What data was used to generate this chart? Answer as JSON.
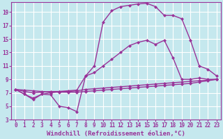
{
  "xlabel": "Windchill (Refroidissement éolien,°C)",
  "background_color": "#c5e8ee",
  "grid_color": "#ffffff",
  "line_color": "#993399",
  "xlim": [
    -0.5,
    23.5
  ],
  "ylim": [
    3,
    20.5
  ],
  "xticks": [
    0,
    1,
    2,
    3,
    4,
    5,
    6,
    7,
    8,
    9,
    10,
    11,
    12,
    13,
    14,
    15,
    16,
    17,
    18,
    19,
    20,
    21,
    22,
    23
  ],
  "yticks": [
    3,
    5,
    7,
    9,
    11,
    13,
    15,
    17,
    19
  ],
  "line1_x": [
    0,
    1,
    2,
    3,
    4,
    5,
    6,
    7,
    8,
    9,
    10,
    11,
    12,
    13,
    14,
    15,
    16,
    17,
    18,
    19,
    20,
    21,
    22,
    23
  ],
  "line1_y": [
    7.5,
    6.8,
    6.0,
    6.8,
    6.7,
    5.0,
    4.8,
    4.2,
    9.5,
    10.0,
    11.0,
    12.0,
    13.0,
    14.0,
    14.5,
    14.8,
    14.2,
    14.8,
    12.2,
    9.0,
    9.0,
    9.2,
    9.0,
    9.0
  ],
  "line2_x": [
    0,
    1,
    2,
    3,
    4,
    5,
    6,
    7,
    8,
    9,
    10,
    11,
    12,
    13,
    14,
    15,
    16,
    17,
    18,
    19,
    20,
    21,
    22,
    23
  ],
  "line2_y": [
    7.5,
    6.8,
    6.2,
    6.8,
    7.0,
    7.2,
    7.3,
    7.4,
    9.5,
    11.0,
    17.5,
    19.2,
    19.8,
    20.0,
    20.2,
    20.3,
    19.8,
    18.5,
    18.5,
    18.0,
    14.8,
    11.0,
    10.5,
    9.5
  ],
  "line3_x": [
    0,
    1,
    2,
    3,
    4,
    5,
    6,
    7,
    8,
    9,
    10,
    11,
    12,
    13,
    14,
    15,
    16,
    17,
    18,
    19,
    20,
    21,
    22,
    23
  ],
  "line3_y": [
    7.5,
    7.2,
    7.0,
    7.1,
    7.2,
    7.2,
    7.2,
    7.3,
    7.5,
    7.6,
    7.7,
    7.8,
    7.9,
    8.0,
    8.1,
    8.2,
    8.3,
    8.4,
    8.5,
    8.6,
    8.7,
    8.8,
    8.9,
    9.0
  ],
  "line4_x": [
    0,
    1,
    2,
    3,
    4,
    5,
    6,
    7,
    8,
    9,
    10,
    11,
    12,
    13,
    14,
    15,
    16,
    17,
    18,
    19,
    20,
    21,
    22,
    23
  ],
  "line4_y": [
    7.5,
    7.4,
    7.3,
    7.2,
    7.1,
    7.1,
    7.1,
    7.1,
    7.2,
    7.3,
    7.4,
    7.5,
    7.6,
    7.7,
    7.8,
    7.9,
    8.0,
    8.1,
    8.2,
    8.3,
    8.4,
    8.6,
    8.8,
    9.0
  ],
  "marker_size": 2.5,
  "linewidth": 1.0,
  "xlabel_fontsize": 6.5,
  "tick_fontsize": 5.5
}
